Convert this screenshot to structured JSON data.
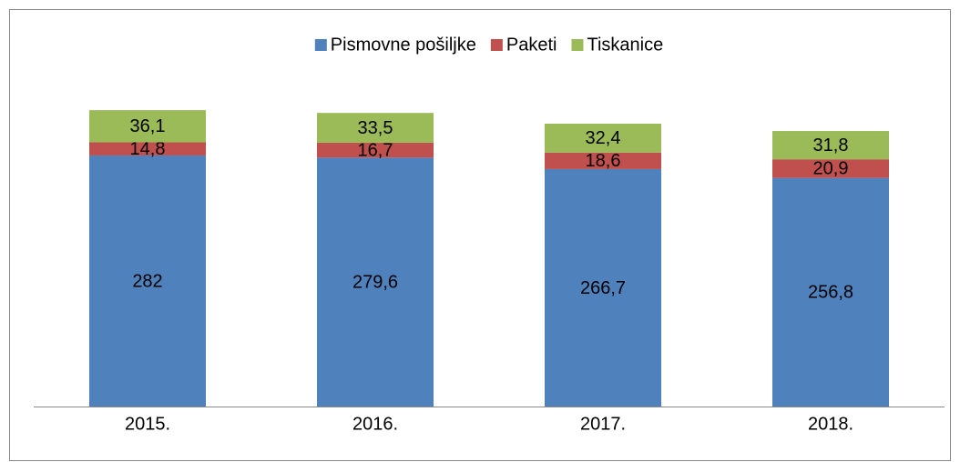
{
  "chart_data": {
    "type": "stacked_bar",
    "categories": [
      "2015.",
      "2016.",
      "2017.",
      "2018."
    ],
    "series": [
      {
        "name": "Pismovne pošiljke",
        "color": "#4f81bd",
        "values": [
          282,
          279.6,
          266.7,
          256.8
        ],
        "value_labels": [
          "282",
          "279,6",
          "266,7",
          "256,8"
        ]
      },
      {
        "name": "Paketi",
        "color": "#c0504d",
        "values": [
          14.8,
          16.7,
          18.6,
          20.9
        ],
        "value_labels": [
          "14,8",
          "16,7",
          "18,6",
          "20,9"
        ]
      },
      {
        "name": "Tiskanice",
        "color": "#9bbb59",
        "values": [
          36.1,
          33.5,
          32.4,
          31.8
        ],
        "value_labels": [
          "36,1",
          "33,5",
          "32,4",
          "31,8"
        ]
      }
    ],
    "ylim": [
      0,
      350
    ],
    "legend": "top"
  }
}
